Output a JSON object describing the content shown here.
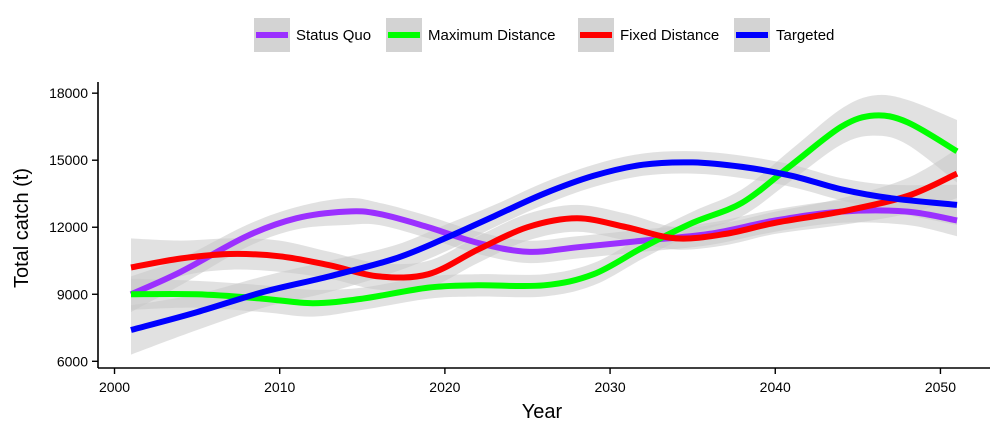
{
  "chart_data": {
    "type": "line",
    "title": "",
    "xlabel": "Year",
    "ylabel": "Total catch (t)",
    "xlim": [
      1999,
      2053
    ],
    "ylim": [
      5700,
      18500
    ],
    "xticks": [
      2000,
      2010,
      2020,
      2030,
      2040,
      2050
    ],
    "yticks": [
      6000,
      9000,
      12000,
      15000,
      18000
    ],
    "grid": false,
    "legend_position": "top",
    "band_color": "#c8c8c8",
    "series": [
      {
        "name": "Status Quo",
        "color": "#9b30ff",
        "points": [
          [
            2001,
            9000
          ],
          [
            2004,
            10000
          ],
          [
            2008,
            11600
          ],
          [
            2011,
            12400
          ],
          [
            2014,
            12700
          ],
          [
            2016,
            12600
          ],
          [
            2019,
            12000
          ],
          [
            2022,
            11300
          ],
          [
            2025,
            10900
          ],
          [
            2028,
            11100
          ],
          [
            2032,
            11400
          ],
          [
            2036,
            11700
          ],
          [
            2040,
            12300
          ],
          [
            2044,
            12700
          ],
          [
            2048,
            12700
          ],
          [
            2051,
            12300
          ]
        ],
        "band": [
          800,
          600,
          500,
          500,
          600,
          500,
          500,
          500,
          500,
          500,
          500,
          500,
          500,
          500,
          600,
          700
        ]
      },
      {
        "name": "Maximum Distance",
        "color": "#00ff00",
        "points": [
          [
            2001,
            9000
          ],
          [
            2005,
            9000
          ],
          [
            2009,
            8800
          ],
          [
            2012,
            8600
          ],
          [
            2015,
            8800
          ],
          [
            2019,
            9300
          ],
          [
            2022,
            9400
          ],
          [
            2026,
            9400
          ],
          [
            2029,
            9900
          ],
          [
            2032,
            11100
          ],
          [
            2035,
            12200
          ],
          [
            2038,
            13100
          ],
          [
            2041,
            14800
          ],
          [
            2044,
            16500
          ],
          [
            2046,
            17000
          ],
          [
            2048,
            16700
          ],
          [
            2051,
            15400
          ]
        ],
        "band": [
          700,
          600,
          600,
          600,
          500,
          500,
          500,
          500,
          500,
          500,
          500,
          600,
          700,
          800,
          900,
          1000,
          1400
        ]
      },
      {
        "name": "Fixed Distance",
        "color": "#ff0000",
        "points": [
          [
            2001,
            10200
          ],
          [
            2004,
            10600
          ],
          [
            2007,
            10800
          ],
          [
            2010,
            10700
          ],
          [
            2013,
            10300
          ],
          [
            2016,
            9800
          ],
          [
            2019,
            9900
          ],
          [
            2022,
            11000
          ],
          [
            2025,
            12000
          ],
          [
            2028,
            12400
          ],
          [
            2031,
            12000
          ],
          [
            2034,
            11500
          ],
          [
            2037,
            11700
          ],
          [
            2040,
            12200
          ],
          [
            2044,
            12700
          ],
          [
            2048,
            13400
          ],
          [
            2051,
            14400
          ]
        ],
        "band": [
          1300,
          800,
          700,
          700,
          600,
          600,
          600,
          600,
          600,
          600,
          600,
          500,
          500,
          500,
          600,
          800,
          1100
        ]
      },
      {
        "name": "Targeted",
        "color": "#0000ff",
        "points": [
          [
            2001,
            7400
          ],
          [
            2005,
            8200
          ],
          [
            2009,
            9100
          ],
          [
            2013,
            9800
          ],
          [
            2017,
            10600
          ],
          [
            2020,
            11500
          ],
          [
            2023,
            12500
          ],
          [
            2026,
            13500
          ],
          [
            2029,
            14300
          ],
          [
            2032,
            14800
          ],
          [
            2035,
            14900
          ],
          [
            2038,
            14700
          ],
          [
            2041,
            14300
          ],
          [
            2044,
            13700
          ],
          [
            2047,
            13300
          ],
          [
            2051,
            13000
          ]
        ],
        "band": [
          1100,
          800,
          700,
          700,
          600,
          600,
          500,
          500,
          500,
          500,
          500,
          500,
          500,
          500,
          600,
          900
        ]
      }
    ]
  }
}
